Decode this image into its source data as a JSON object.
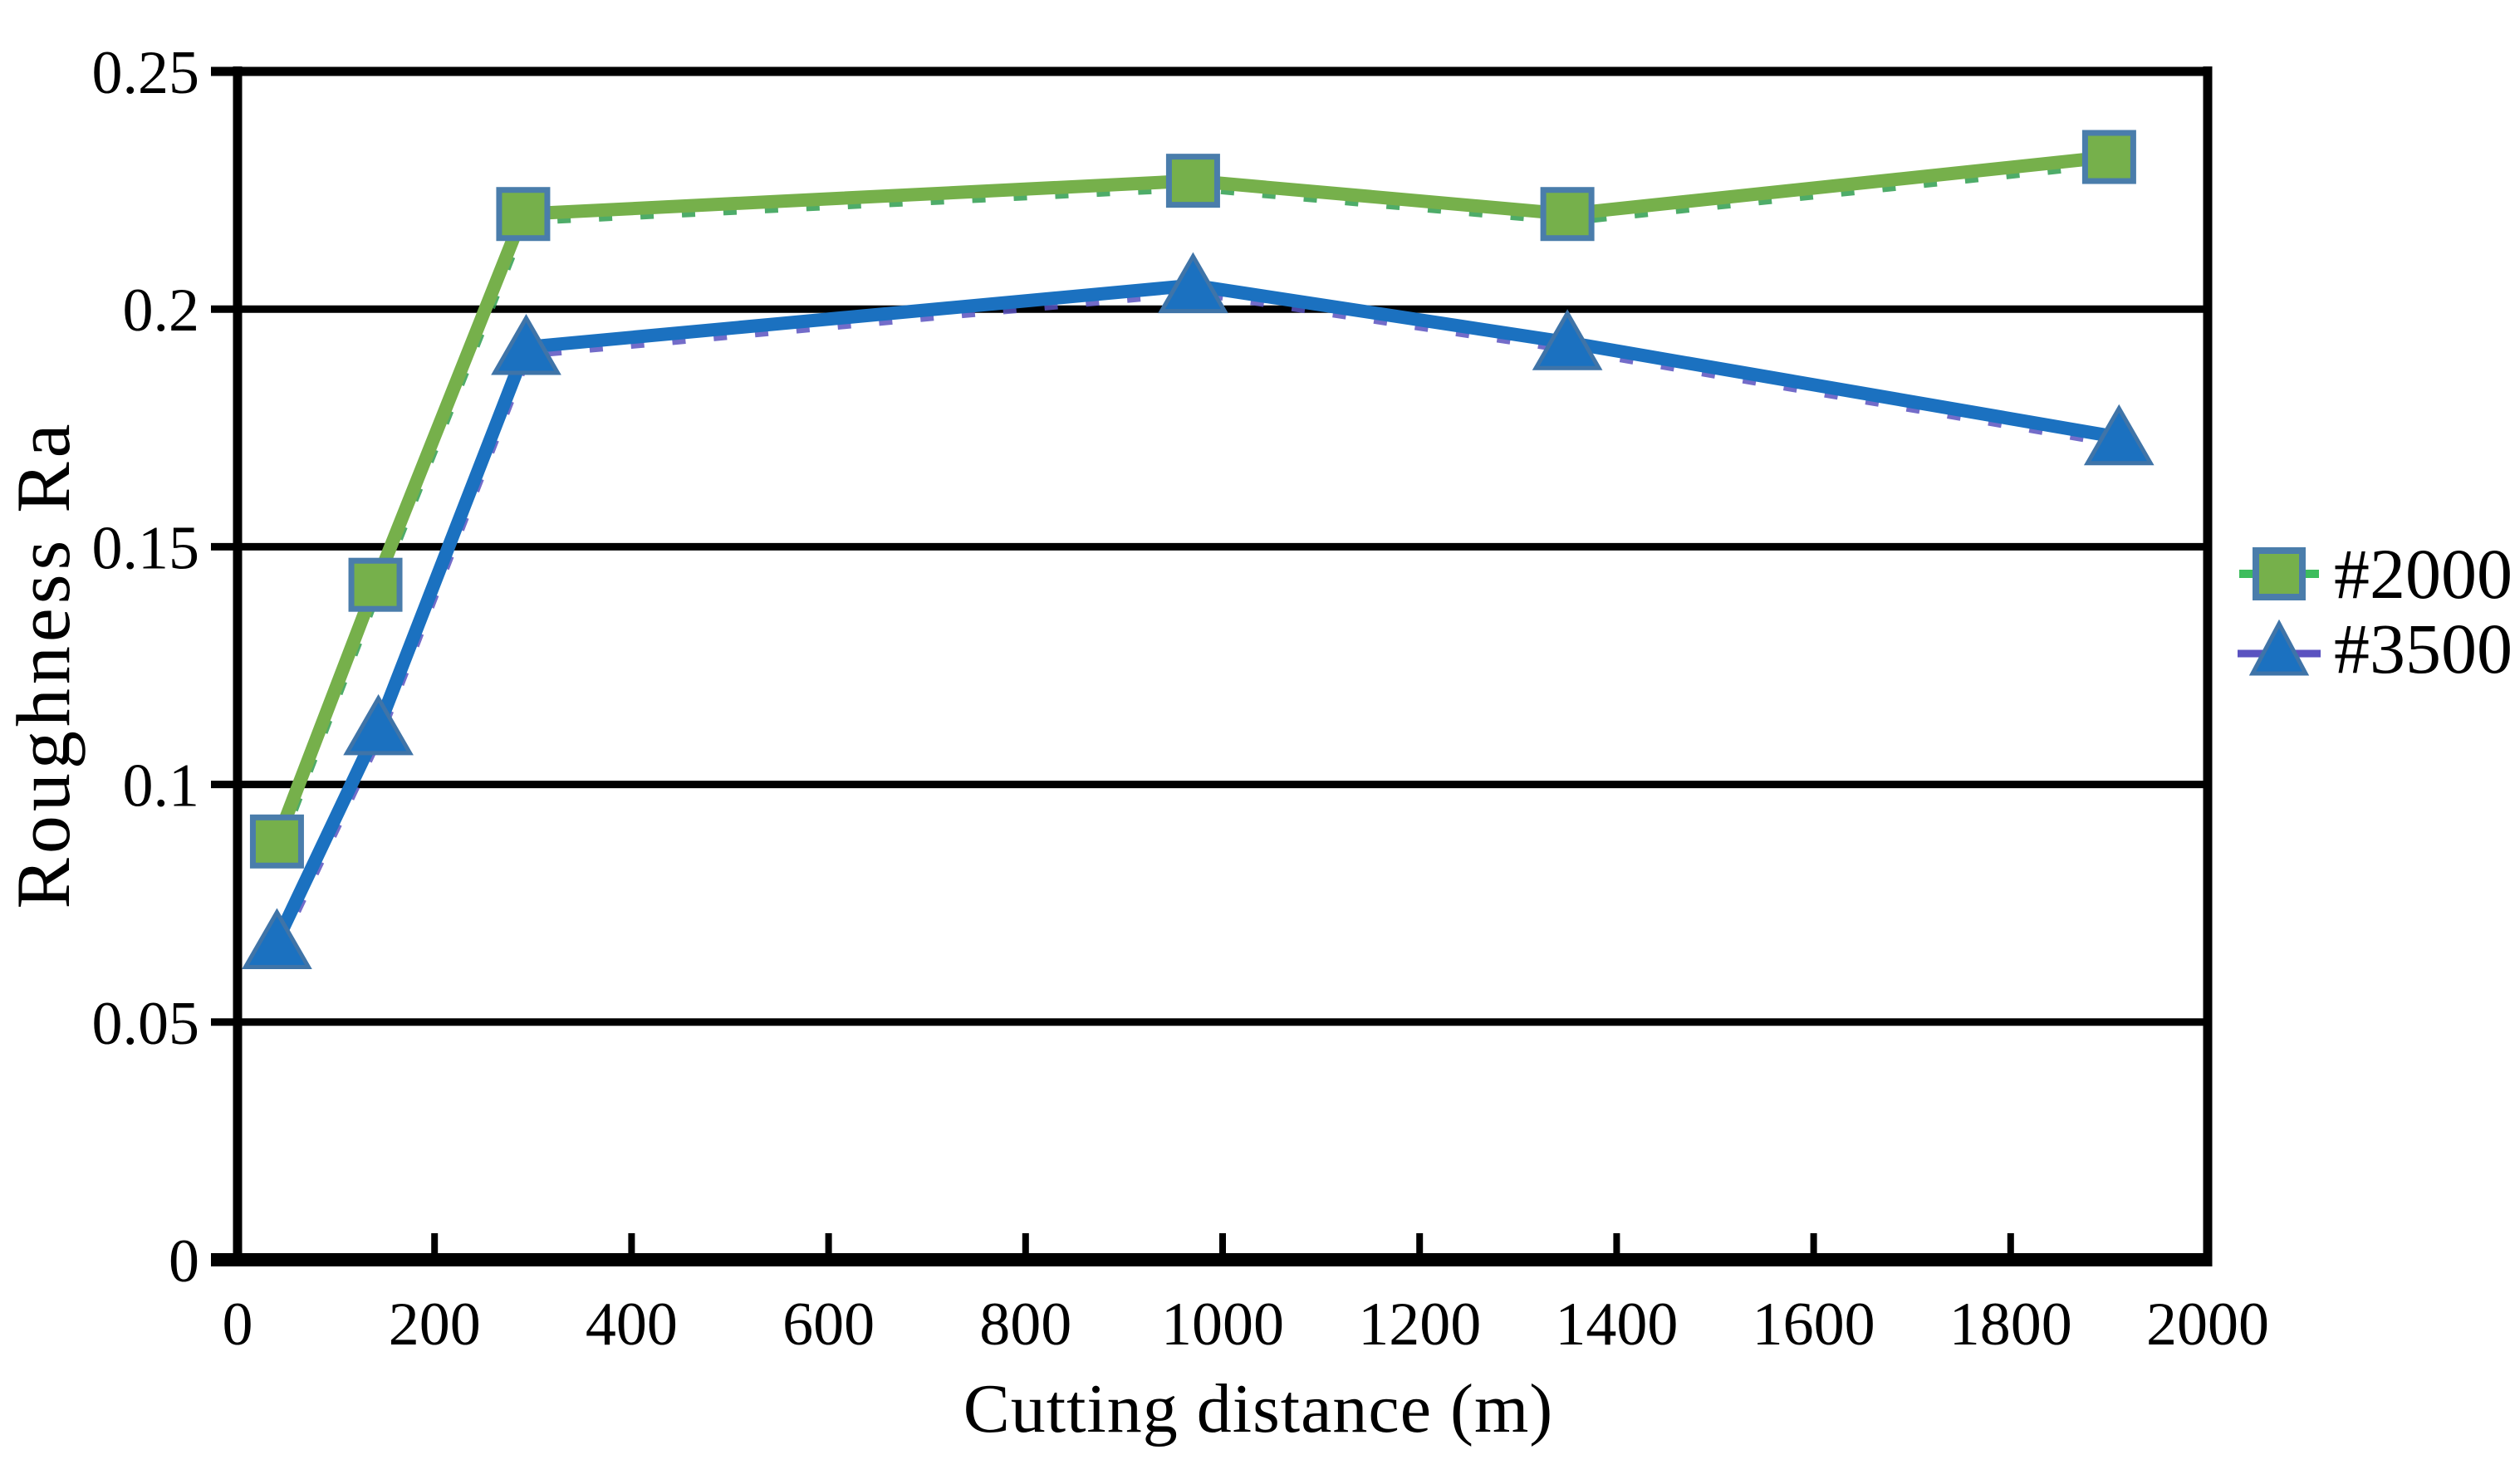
{
  "background": "#ffffff",
  "chart_data": {
    "type": "line",
    "title": "",
    "xlabel": "Cutting distance (m)",
    "ylabel": "Roughness Ra",
    "xlim": [
      0,
      2000
    ],
    "ylim": [
      0,
      0.25
    ],
    "xticks": [
      0,
      200,
      400,
      600,
      800,
      1000,
      1200,
      1400,
      1600,
      1800,
      2000
    ],
    "yticks": [
      0,
      0.05,
      0.1,
      0.15,
      0.2,
      0.25
    ],
    "ytick_labels": [
      "0",
      "0.05",
      "0.1",
      "0.15",
      "0.2",
      "0.25"
    ],
    "grid": "horizontal-black-lines",
    "legend_position": "outside-right",
    "axis_color": "#000000",
    "text_color": "#000000",
    "series": [
      {
        "name": "#2000",
        "marker": "square",
        "line_color": "#76b04b",
        "marker_fill": "#76b04b",
        "marker_border": "#4a7dab",
        "overlay_dash_color": "#2f9e4f",
        "legend_line_color": "#3dbd5d",
        "x": [
          40,
          140,
          290,
          970,
          1350,
          1900
        ],
        "y": [
          0.088,
          0.142,
          0.22,
          0.227,
          0.22,
          0.232
        ]
      },
      {
        "name": "#3500",
        "marker": "triangle",
        "line_color": "#1b71c0",
        "marker_fill": "#1b71c0",
        "marker_border": "#3f74a8",
        "overlay_dash_color": "#5a52c0",
        "legend_line_color": "#5a52c0",
        "x": [
          40,
          143,
          293,
          970,
          1350,
          1910
        ],
        "y": [
          0.067,
          0.112,
          0.192,
          0.205,
          0.193,
          0.173
        ]
      }
    ]
  }
}
